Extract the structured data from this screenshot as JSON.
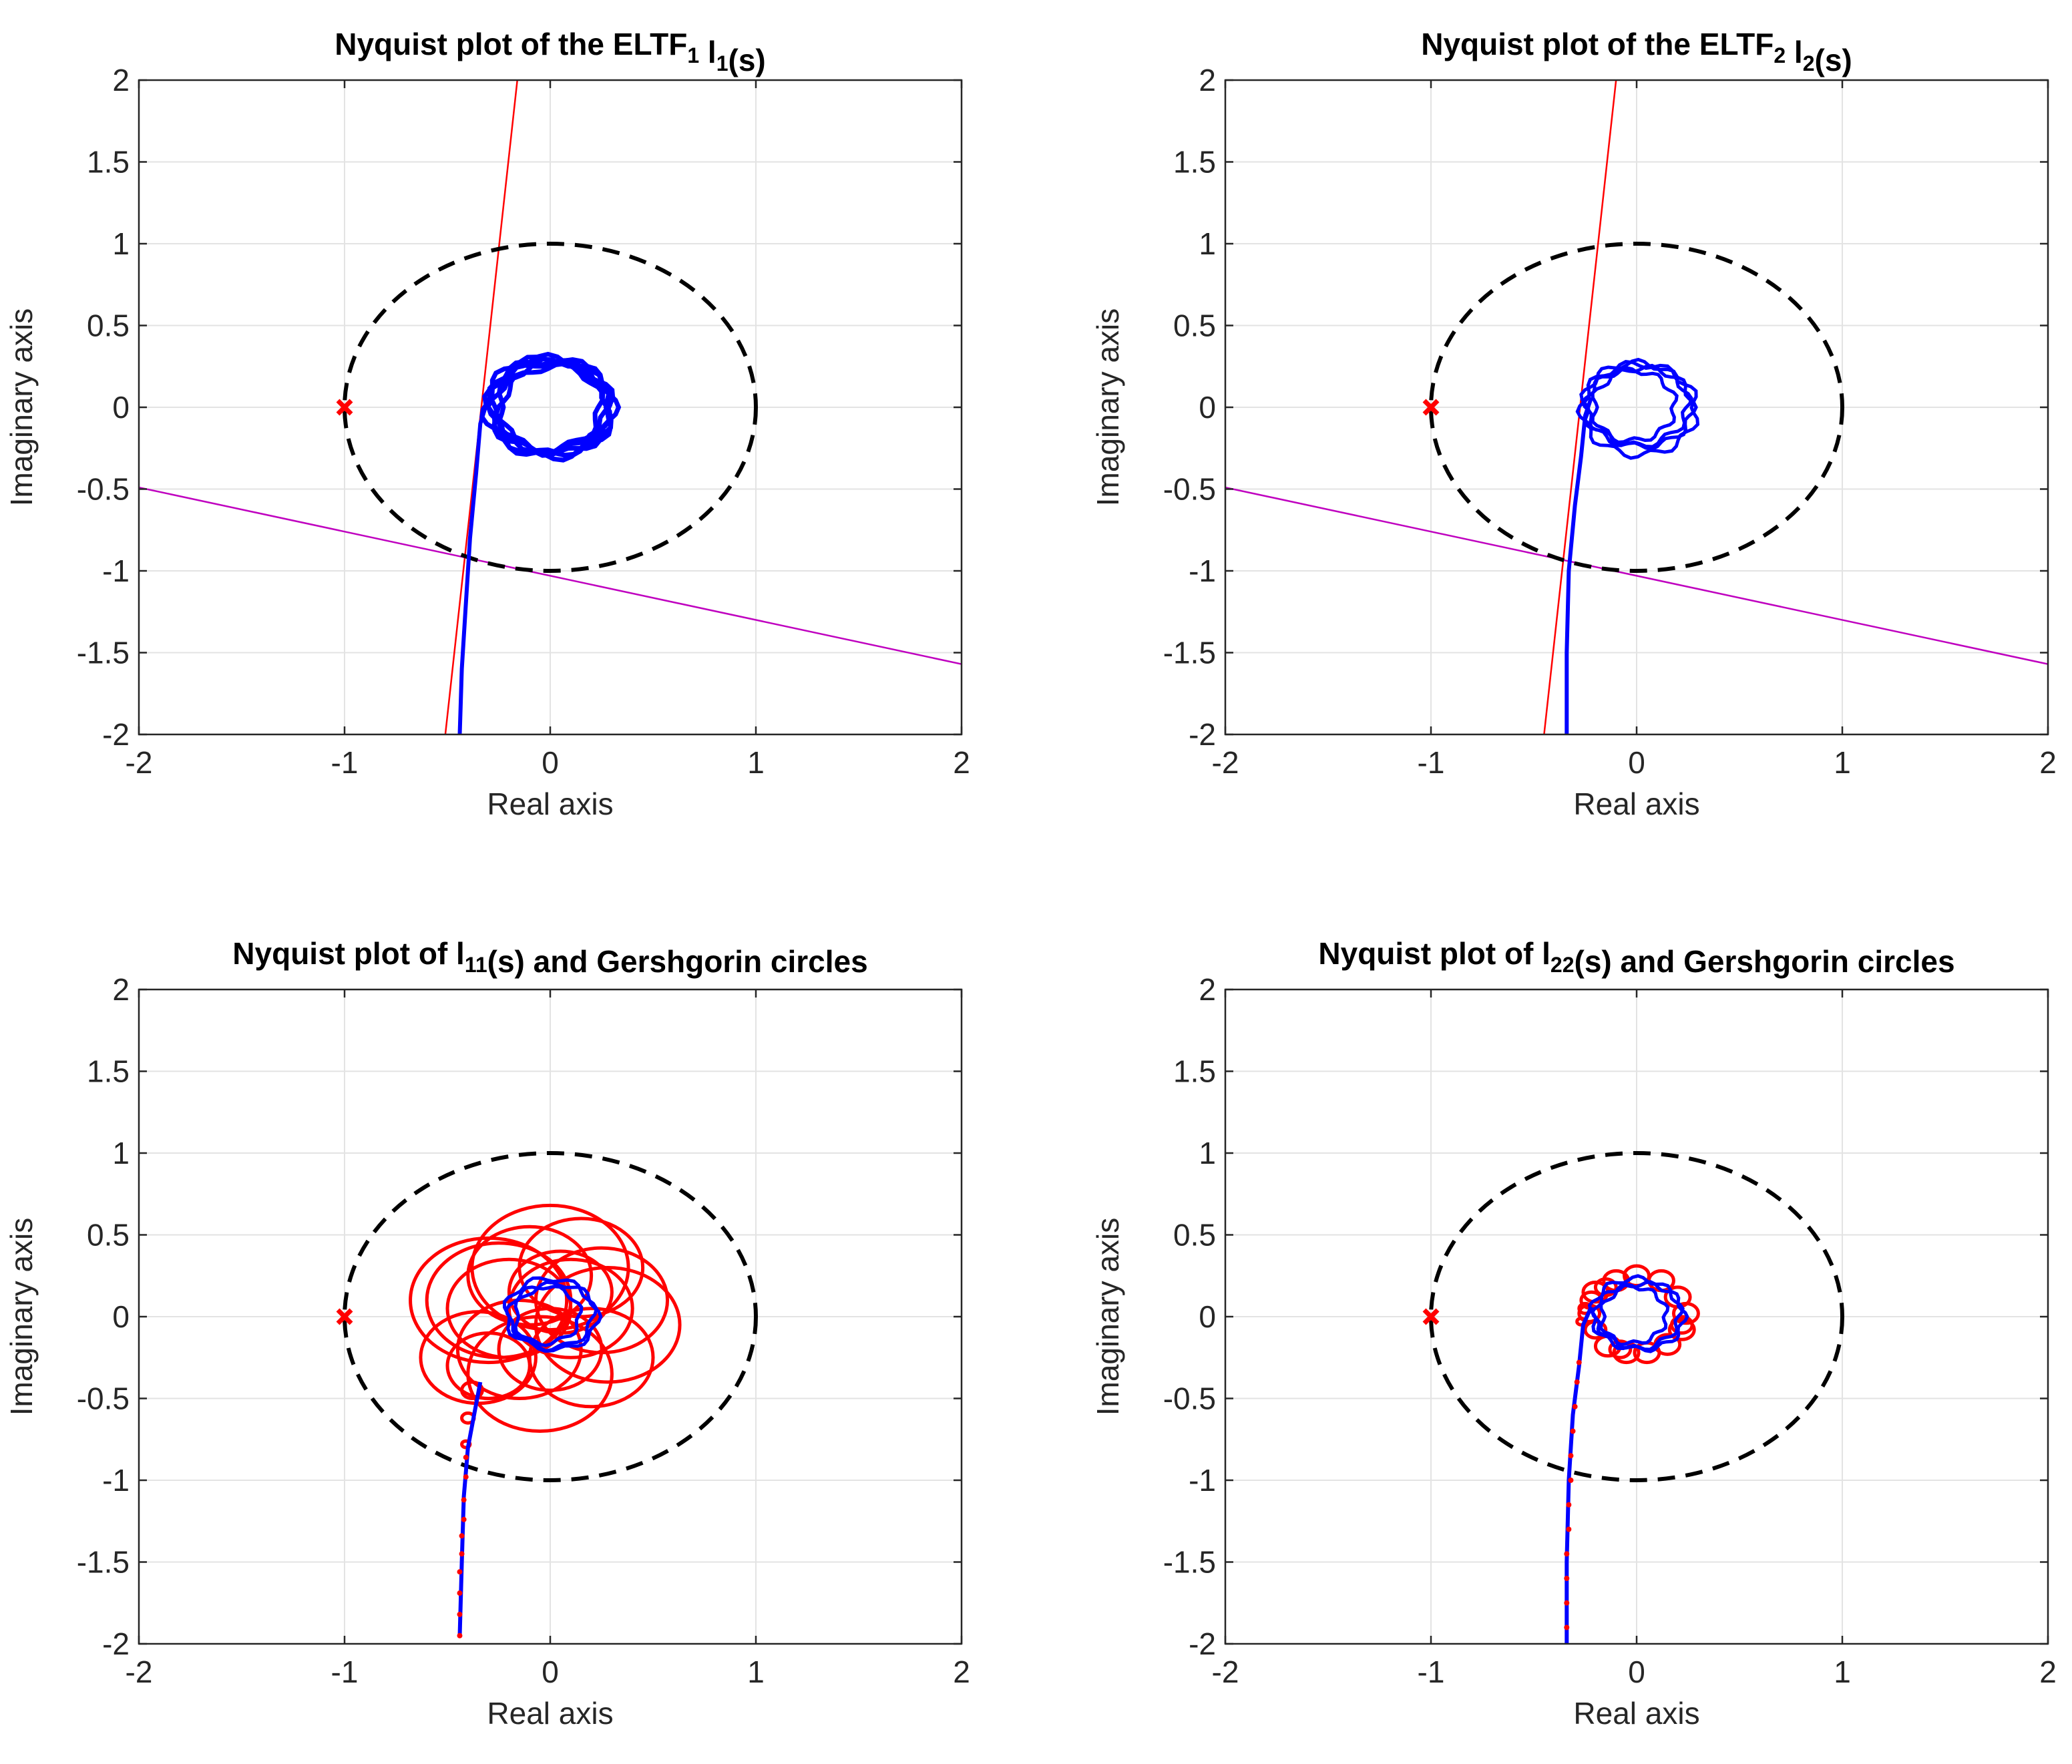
{
  "figure": {
    "colors": {
      "nyquist": "#0000ff",
      "critical_point": "#ff0000",
      "unit_circle": "#000000",
      "sector_line_1": "#ff0000",
      "sector_line_2": "#bf00bf",
      "gershgorin": "#ff0000",
      "grid": "#e3e3e3",
      "axes": "#262626"
    }
  },
  "chart_data": [
    {
      "type": "line",
      "title_parts": [
        {
          "text": "Nyquist plot of the ELTF"
        },
        {
          "text": "1",
          "sub": true
        },
        {
          "text": " l"
        },
        {
          "text": "1",
          "sub": true
        },
        {
          "text": "(s)"
        }
      ],
      "xlabel": "Real axis",
      "ylabel": "Imaginary axis",
      "xlim": [
        -2,
        2
      ],
      "ylim": [
        -2,
        2
      ],
      "xticks": [
        "-2",
        "-1",
        "0",
        "1",
        "2"
      ],
      "yticks": [
        "2",
        "1.5",
        "1",
        "0.5",
        "0",
        "-0.5",
        "-1",
        "-1.5",
        "-2"
      ],
      "grid": true,
      "critical_point": [
        -1,
        0
      ],
      "unit_circle": {
        "center": [
          0,
          0
        ],
        "radius": 1,
        "style": "dashed"
      },
      "sector_lines": [
        {
          "name": "red",
          "points": [
            [
              -0.51,
              -2
            ],
            [
              -0.16,
              2
            ]
          ]
        },
        {
          "name": "magenta",
          "points": [
            [
              -2,
              -0.49
            ],
            [
              2,
              -1.57
            ]
          ]
        }
      ],
      "nyquist": {
        "tail": [
          [
            -0.44,
            -2
          ],
          [
            -0.43,
            -1.6
          ],
          [
            -0.41,
            -1.2
          ],
          [
            -0.39,
            -0.8
          ],
          [
            -0.36,
            -0.4
          ],
          [
            -0.34,
            -0.1
          ],
          [
            -0.3,
            0.06
          ]
        ],
        "loop": {
          "center": [
            0,
            0
          ],
          "radius": 0.28,
          "sides": 7,
          "repeats": 6,
          "jitter": 0.02,
          "width": 7
        }
      }
    },
    {
      "type": "line",
      "title_parts": [
        {
          "text": "Nyquist plot of the ELTF"
        },
        {
          "text": "2",
          "sub": true
        },
        {
          "text": " l"
        },
        {
          "text": "2",
          "sub": true
        },
        {
          "text": "(s)"
        }
      ],
      "xlabel": "Real axis",
      "ylabel": "Imaginary axis",
      "xlim": [
        -2,
        2
      ],
      "ylim": [
        -2,
        2
      ],
      "xticks": [
        "-2",
        "-1",
        "0",
        "1",
        "2"
      ],
      "yticks": [
        "2",
        "1.5",
        "1",
        "0.5",
        "0",
        "-0.5",
        "-1",
        "-1.5",
        "-2"
      ],
      "grid": true,
      "critical_point": [
        -1,
        0
      ],
      "unit_circle": {
        "center": [
          0,
          0
        ],
        "radius": 1,
        "style": "dashed"
      },
      "sector_lines": [
        {
          "name": "red",
          "points": [
            [
              -0.45,
              -2
            ],
            [
              -0.1,
              2
            ]
          ]
        },
        {
          "name": "magenta",
          "points": [
            [
              -2,
              -0.49
            ],
            [
              2,
              -1.57
            ]
          ]
        }
      ],
      "nyquist": {
        "tail": [
          [
            -0.34,
            -2
          ],
          [
            -0.34,
            -1.5
          ],
          [
            -0.33,
            -1.0
          ],
          [
            -0.3,
            -0.6
          ],
          [
            -0.27,
            -0.3
          ],
          [
            -0.25,
            -0.05
          ],
          [
            -0.22,
            0.06
          ]
        ],
        "loop": {
          "center": [
            0,
            0
          ],
          "radius": 0.24,
          "sides": 9,
          "repeats": 4,
          "jitter": 0.05,
          "width": 5
        }
      }
    },
    {
      "type": "line",
      "title_parts": [
        {
          "text": "Nyquist plot of l"
        },
        {
          "text": "11",
          "sub": true
        },
        {
          "text": "(s) and Gershgorin circles"
        }
      ],
      "xlabel": "Real axis",
      "ylabel": "Imaginary axis",
      "xlim": [
        -2,
        2
      ],
      "ylim": [
        -2,
        2
      ],
      "xticks": [
        "-2",
        "-1",
        "0",
        "1",
        "2"
      ],
      "yticks": [
        "2",
        "1.5",
        "1",
        "0.5",
        "0",
        "-0.5",
        "-1",
        "-1.5",
        "-2"
      ],
      "grid": true,
      "critical_point": [
        -1,
        0
      ],
      "unit_circle": {
        "center": [
          0,
          0
        ],
        "radius": 1,
        "style": "dashed"
      },
      "nyquist": {
        "tail": [
          [
            -0.44,
            -1.95
          ],
          [
            -0.43,
            -1.5
          ],
          [
            -0.42,
            -1.1
          ],
          [
            -0.4,
            -0.8
          ],
          [
            -0.37,
            -0.6
          ],
          [
            -0.34,
            -0.4
          ]
        ],
        "loop": {
          "center": [
            0,
            0
          ],
          "radius": 0.2,
          "sides": 7,
          "repeats": 3,
          "jitter": 0.04,
          "width": 5
        }
      },
      "gershgorin_circles": [
        [
          -0.35,
          -0.25,
          0.28
        ],
        [
          -0.25,
          0.1,
          0.35
        ],
        [
          0.0,
          0.3,
          0.38
        ],
        [
          0.25,
          0.1,
          0.32
        ],
        [
          0.2,
          -0.25,
          0.3
        ],
        [
          -0.05,
          -0.35,
          0.35
        ],
        [
          -0.2,
          0.05,
          0.3
        ],
        [
          0.1,
          0.05,
          0.3
        ],
        [
          -0.1,
          0.25,
          0.3
        ],
        [
          0.15,
          0.3,
          0.3
        ],
        [
          0.28,
          -0.05,
          0.35
        ],
        [
          -0.3,
          0.1,
          0.38
        ],
        [
          0.0,
          -0.2,
          0.25
        ],
        [
          -0.15,
          -0.2,
          0.3
        ],
        [
          0.05,
          0.15,
          0.25
        ],
        [
          -0.3,
          -0.3,
          0.2
        ],
        [
          -0.38,
          -0.45,
          0.05
        ],
        [
          -0.4,
          -0.62,
          0.03
        ],
        [
          -0.41,
          -0.78,
          0.02
        ]
      ],
      "tail_markers": [
        [
          -0.44,
          -1.95
        ],
        [
          -0.44,
          -1.82
        ],
        [
          -0.44,
          -1.69
        ],
        [
          -0.44,
          -1.56
        ],
        [
          -0.43,
          -1.45
        ],
        [
          -0.43,
          -1.34
        ],
        [
          -0.42,
          -1.24
        ],
        [
          -0.42,
          -1.12
        ],
        [
          -0.41,
          -0.98
        ],
        [
          -0.41,
          -0.86
        ]
      ]
    },
    {
      "type": "line",
      "title_parts": [
        {
          "text": "Nyquist plot of l"
        },
        {
          "text": "22",
          "sub": true
        },
        {
          "text": "(s) and Gershgorin circles"
        }
      ],
      "xlabel": "Real axis",
      "ylabel": "Imaginary axis",
      "xlim": [
        -2,
        2
      ],
      "ylim": [
        -2,
        2
      ],
      "xticks": [
        "-2",
        "-1",
        "0",
        "1",
        "2"
      ],
      "yticks": [
        "2",
        "1.5",
        "1",
        "0.5",
        "0",
        "-0.5",
        "-1",
        "-1.5",
        "-2"
      ],
      "grid": true,
      "critical_point": [
        -1,
        0
      ],
      "unit_circle": {
        "center": [
          0,
          0
        ],
        "radius": 1,
        "style": "dashed"
      },
      "nyquist": {
        "tail": [
          [
            -0.34,
            -2
          ],
          [
            -0.34,
            -1.5
          ],
          [
            -0.33,
            -1.0
          ],
          [
            -0.31,
            -0.6
          ],
          [
            -0.28,
            -0.3
          ],
          [
            -0.26,
            -0.05
          ],
          [
            -0.22,
            0.06
          ]
        ],
        "loop": {
          "center": [
            0,
            0
          ],
          "radius": 0.2,
          "sides": 9,
          "repeats": 3,
          "jitter": 0.04,
          "width": 5
        }
      },
      "gershgorin_circles": [
        [
          -0.2,
          0.15,
          0.06
        ],
        [
          -0.1,
          0.22,
          0.06
        ],
        [
          0.0,
          0.25,
          0.06
        ],
        [
          0.12,
          0.22,
          0.06
        ],
        [
          0.2,
          0.12,
          0.06
        ],
        [
          0.24,
          0.02,
          0.06
        ],
        [
          0.22,
          -0.08,
          0.06
        ],
        [
          0.15,
          -0.17,
          0.06
        ],
        [
          0.05,
          -0.22,
          0.06
        ],
        [
          -0.05,
          -0.22,
          0.06
        ],
        [
          -0.14,
          -0.18,
          0.06
        ],
        [
          -0.2,
          -0.08,
          0.05
        ],
        [
          -0.23,
          0.02,
          0.05
        ],
        [
          -0.22,
          0.1,
          0.05
        ],
        [
          -0.15,
          0.18,
          0.05
        ],
        [
          0.22,
          -0.05,
          0.05
        ],
        [
          -0.08,
          -0.2,
          0.05
        ],
        [
          -0.25,
          0.05,
          0.03
        ],
        [
          -0.27,
          -0.03,
          0.02
        ]
      ],
      "tail_markers": [
        [
          -0.34,
          -1.9
        ],
        [
          -0.34,
          -1.75
        ],
        [
          -0.34,
          -1.6
        ],
        [
          -0.34,
          -1.45
        ],
        [
          -0.33,
          -1.3
        ],
        [
          -0.33,
          -1.15
        ],
        [
          -0.32,
          -1.0
        ],
        [
          -0.32,
          -0.85
        ],
        [
          -0.31,
          -0.7
        ],
        [
          -0.3,
          -0.55
        ],
        [
          -0.29,
          -0.4
        ],
        [
          -0.28,
          -0.28
        ]
      ]
    }
  ]
}
